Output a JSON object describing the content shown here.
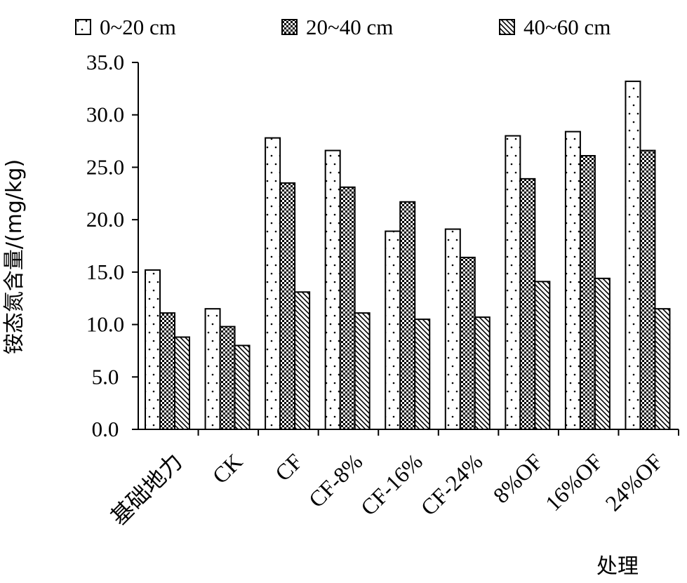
{
  "chart_data": {
    "type": "bar",
    "xlabel": "处理",
    "ylabel": "铵态氮含量/(mg/kg)",
    "ylim": [
      0,
      35
    ],
    "yticks": [
      "0.0",
      "5.0",
      "10.0",
      "15.0",
      "20.0",
      "25.0",
      "30.0",
      "35.0"
    ],
    "categories": [
      "基础地力",
      "CK",
      "CF",
      "CF-8%",
      "CF-16%",
      "CF-24%",
      "8%OF",
      "16%OF",
      "24%OF"
    ],
    "legend_position": "top",
    "grid": false,
    "series": [
      {
        "name": "0~20 cm",
        "pattern": "dots",
        "values": [
          15.2,
          11.5,
          27.8,
          26.6,
          18.9,
          19.1,
          28.0,
          28.4,
          33.2
        ]
      },
      {
        "name": "20~40 cm",
        "pattern": "checker",
        "values": [
          11.1,
          9.8,
          23.5,
          23.1,
          21.7,
          16.4,
          23.9,
          26.1,
          26.6
        ]
      },
      {
        "name": "40~60 cm",
        "pattern": "diagonal",
        "values": [
          8.8,
          8.0,
          13.1,
          11.1,
          10.5,
          10.7,
          14.1,
          14.4,
          11.5
        ]
      }
    ]
  }
}
